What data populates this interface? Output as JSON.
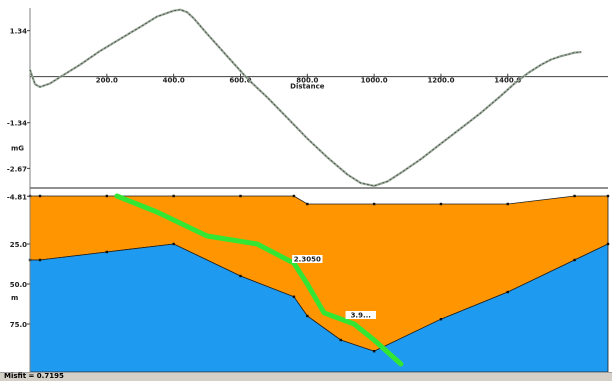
{
  "chart_data": [
    {
      "type": "line",
      "title": "",
      "xlabel": "Distance",
      "ylabel": "mG",
      "xlim": [
        -30,
        1700
      ],
      "ylim": [
        -3.3,
        2.0
      ],
      "x_ticks": [
        "200.0",
        "400.0",
        "600.0",
        "800.0",
        "1000.0",
        "1200.0",
        "1400.0"
      ],
      "x_tick_values": [
        200,
        400,
        600,
        800,
        1000,
        1200,
        1400
      ],
      "y_ticks": [
        "1.34",
        "-1.34",
        "-2.67"
      ],
      "y_tick_values": [
        1.34,
        -1.34,
        -2.67
      ],
      "grid": false,
      "series": [
        {
          "name": "",
          "color": "#9aa89a",
          "x": [
            -30,
            -15,
            0,
            30,
            70,
            120,
            180,
            240,
            300,
            350,
            400,
            420,
            440,
            460,
            500,
            560,
            620,
            680,
            740,
            800,
            860,
            920,
            960,
            1000,
            1040,
            1080,
            1140,
            1200,
            1260,
            1320,
            1380,
            1420,
            1460,
            1500,
            1530,
            1560,
            1580,
            1600,
            1620
          ],
          "y": [
            0.2,
            -0.22,
            -0.3,
            -0.2,
            0.05,
            0.35,
            0.75,
            1.1,
            1.45,
            1.75,
            1.92,
            1.95,
            1.88,
            1.7,
            1.25,
            0.6,
            -0.05,
            -0.6,
            -1.2,
            -1.8,
            -2.35,
            -2.85,
            -3.1,
            -3.18,
            -3.05,
            -2.8,
            -2.4,
            -1.95,
            -1.5,
            -1.05,
            -0.55,
            -0.2,
            0.1,
            0.35,
            0.5,
            0.6,
            0.65,
            0.7,
            0.72
          ]
        }
      ]
    },
    {
      "type": "area",
      "title": "",
      "xlabel": "",
      "ylabel": "m",
      "xlim": [
        -30,
        1700
      ],
      "ylim": [
        105,
        -10
      ],
      "y_ticks": [
        "-4.81",
        "25.0",
        "50.0",
        "75.0"
      ],
      "y_tick_values": [
        -4.81,
        25.0,
        50.0,
        75.0
      ],
      "grid": false,
      "series": [
        {
          "name": "",
          "color": "#ff9500",
          "x": [
            -30,
            0,
            200,
            400,
            600,
            760,
            800,
            1000,
            1200,
            1400,
            1600,
            1700
          ],
          "y": [
            -5,
            -5,
            -5,
            -5,
            -5,
            -5,
            0,
            0,
            0,
            0,
            -5,
            -5
          ]
        },
        {
          "name": "",
          "color": "#1e9bf0",
          "x": [
            -30,
            0,
            200,
            400,
            600,
            760,
            800,
            900,
            1000,
            1200,
            1400,
            1600,
            1700
          ],
          "y": [
            35,
            35,
            30,
            25,
            45,
            58,
            70,
            85,
            92,
            72,
            55,
            35,
            25
          ]
        }
      ],
      "labels": [
        {
          "text": "2.3050",
          "x": 800,
          "y": 35
        },
        {
          "text": "3.9...",
          "x": 960,
          "y": 70
        }
      ],
      "trend_line": {
        "color": "#33e633",
        "x": [
          230,
          350,
          500,
          650,
          760,
          800,
          850,
          940,
          1000,
          1080
        ],
        "y": [
          -5,
          5,
          20,
          25,
          37,
          50,
          68,
          75,
          85,
          100
        ]
      }
    }
  ],
  "status": {
    "text": "Misfit = 0.7195"
  }
}
